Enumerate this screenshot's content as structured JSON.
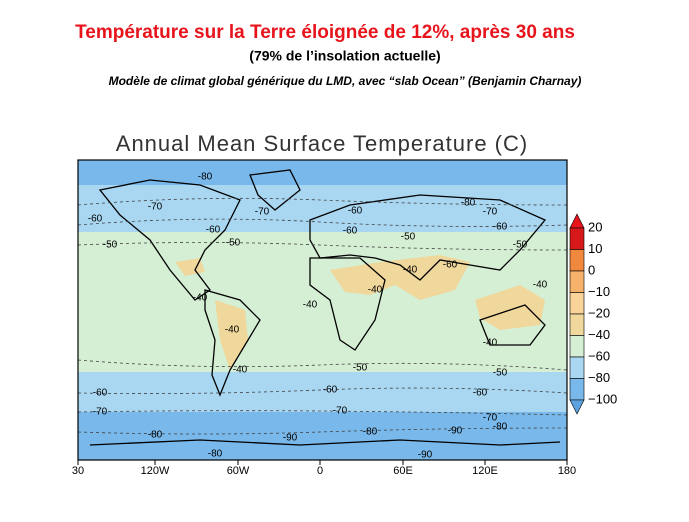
{
  "header": {
    "title": "Température sur la Terre éloignée de 12%, après 30 ans",
    "subtitle": "(79% de l’insolation actuelle)",
    "credit": "Modèle de climat global générique du LMD, avec “slab Ocean” (Benjamin Charnay)"
  },
  "map": {
    "title": "Annual Mean Surface Temperature (C)",
    "x_labels": [
      "30",
      "120W",
      "60W",
      "0",
      "60E",
      "120E",
      "180"
    ],
    "colorbar": {
      "labels": [
        "20",
        "10",
        "0",
        "−10",
        "−20",
        "−40",
        "−60",
        "−80",
        "−100"
      ]
    },
    "contour_labels": [
      "-80",
      "-70",
      "-60",
      "-70",
      "-60",
      "-80",
      "-70",
      "-60",
      "-50",
      "-60",
      "-50",
      "-60",
      "-50",
      "-50",
      "-60",
      "-40",
      "-40",
      "-40",
      "-40",
      "-40",
      "-40",
      "-40",
      "-40",
      "-50",
      "-50",
      "-60",
      "-60",
      "-60",
      "-70",
      "-70",
      "-70",
      "-80",
      "-80",
      "-90",
      "-90",
      "-80",
      "-80",
      "-90"
    ]
  }
}
